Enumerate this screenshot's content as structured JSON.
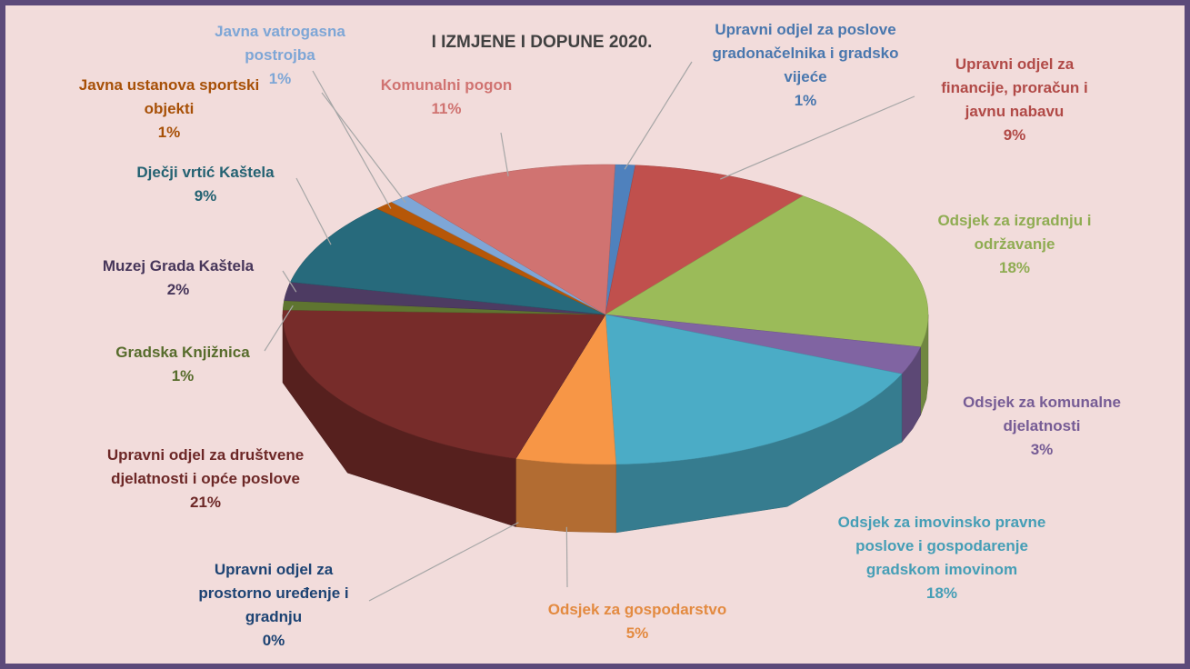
{
  "chart_data": {
    "type": "pie",
    "title": "I IZMJENE I DOPUNE 2020.",
    "categories": [
      "Upravni odjel za poslove gradonačelnika i gradsko vijeće",
      "Upravni odjel za financije, proračun i javnu nabavu",
      "Odsjek za izgradnju i održavanje",
      "Odsjek za komunalne djelatnosti",
      "Odsjek za imovinsko pravne poslove i gospodarenje gradskom imovinom",
      "Odsjek za gospodarstvo",
      "Upravni odjel za prostorno uređenje i gradnju",
      "Upravni odjel za društvene djelatnosti i opće poslove",
      "Gradska Knjižnica",
      "Muzej Grada Kaštela",
      "Dječji vrtić Kaštela",
      "Javna ustanova sportski objekti",
      "Javna vatrogasna postrojba",
      "Komunalni pogon"
    ],
    "values": [
      1,
      9,
      18,
      3,
      18,
      5,
      0,
      21,
      1,
      2,
      9,
      1,
      1,
      11
    ],
    "value_labels": [
      "1%",
      "9%",
      "18%",
      "3%",
      "18%",
      "5%",
      "0%",
      "21%",
      "1%",
      "2%",
      "9%",
      "1%",
      "1%",
      "11%"
    ],
    "colors": [
      "#4f81bd",
      "#c0504d",
      "#9bbb59",
      "#8064a2",
      "#4bacc6",
      "#f79646",
      "#1f497d",
      "#772c2a",
      "#5f7530",
      "#4d3b62",
      "#276a7c",
      "#b65708",
      "#7ea6d6",
      "#d07371"
    ]
  }
}
